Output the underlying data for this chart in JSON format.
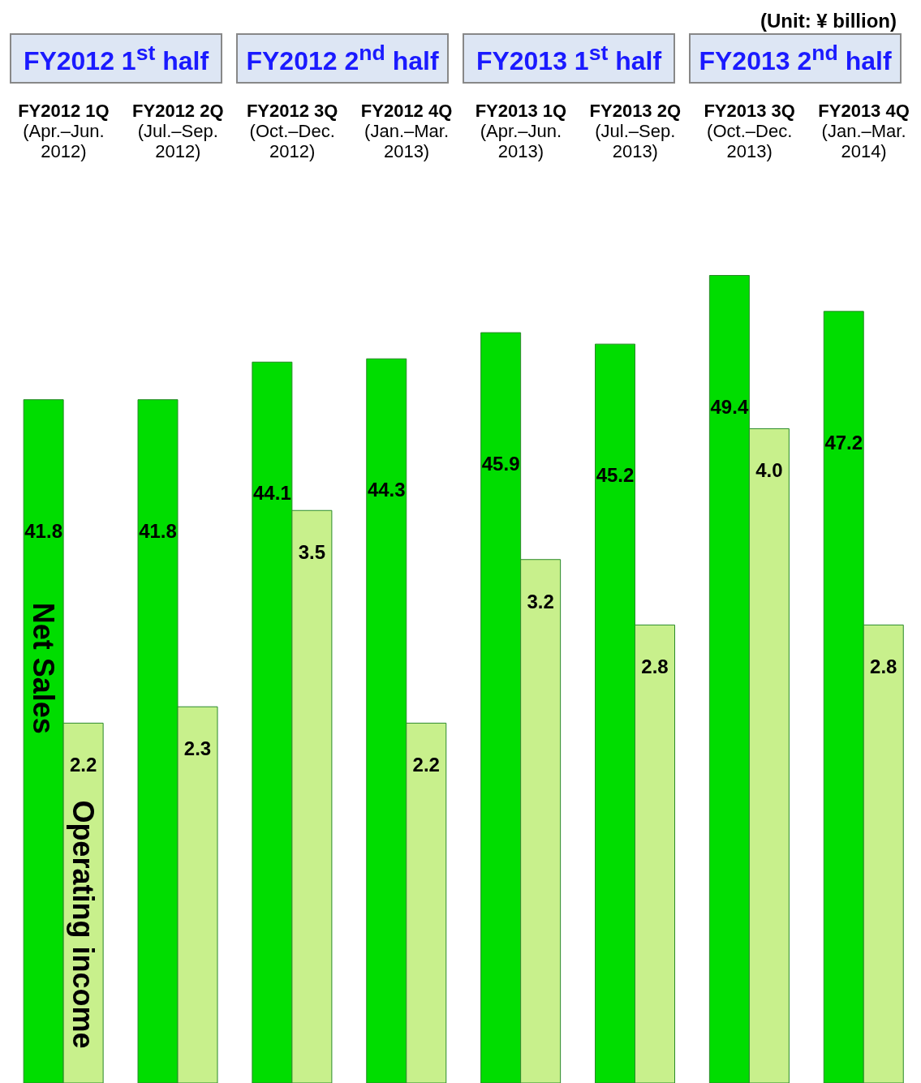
{
  "chart_data": {
    "type": "bar",
    "categories": [
      "FY2012 1Q\n(Apr.–Jun.\n2012)",
      "FY2012 2Q\n(Jul.–Sep.\n2012)",
      "FY2012 3Q\n(Oct.–Dec.\n2012)",
      "FY2012 4Q\n(Jan.–Mar.\n2013)",
      "FY2013 1Q\n(Apr.–Jun.\n2013)",
      "FY2013 2Q\n(Jul.–Sep.\n2013)",
      "FY2013 3Q\n(Oct.–Dec.\n2013)",
      "FY2013 4Q\n(Jan.–Mar.\n2014)"
    ],
    "series": [
      {
        "name": "Net Sales",
        "color": "#00dd00",
        "values": [
          41.8,
          41.8,
          44.1,
          44.3,
          45.9,
          45.2,
          49.4,
          47.2
        ],
        "value_labels": [
          "41.8",
          "41.8",
          "44.1",
          "44.3",
          "45.9",
          "45.2",
          "49.4",
          "47.2"
        ]
      },
      {
        "name": "Operating income",
        "color": "#c8f08c",
        "axis": "y2",
        "values": [
          2.2,
          2.3,
          3.5,
          2.2,
          3.2,
          2.8,
          4.0,
          2.8
        ],
        "value_labels": [
          "2.2",
          "2.3",
          "3.5",
          "2.2",
          "3.2",
          "2.8",
          "4.0",
          "2.8"
        ]
      }
    ],
    "tick_labels": "x",
    "annotations": [
      "(Unit: ¥ billion)",
      "FY2012 1$^{st}$ half",
      "FY2012 2$^{nd}$ half",
      "FY2013 1$^{st}$ half",
      "FY2013 2$^{nd}$ half"
    ]
  }
}
